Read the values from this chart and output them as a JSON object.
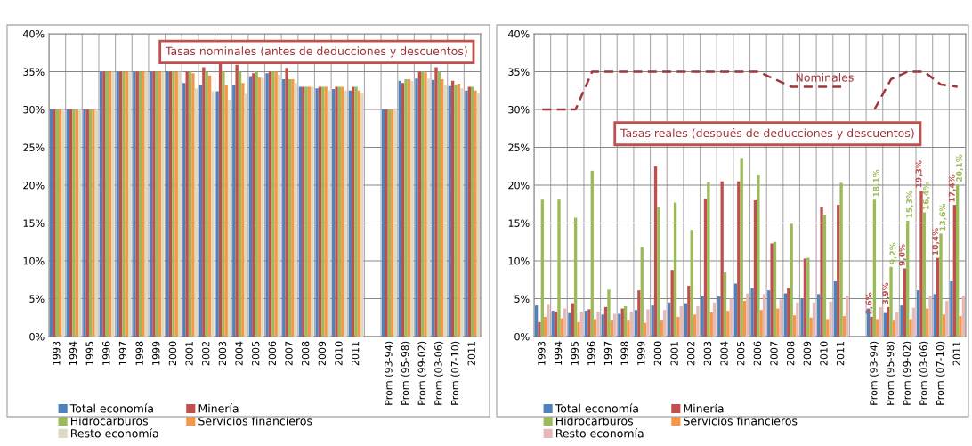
{
  "chart_data": [
    {
      "type": "bar",
      "annotations": [
        "Tasas nominales (antes de deducciones y descuentos)"
      ],
      "categories": [
        "1993",
        "1994",
        "1995",
        "1996",
        "1997",
        "1998",
        "1999",
        "2000",
        "2001",
        "2002",
        "2003",
        "2004",
        "2005",
        "2006",
        "2007",
        "2008",
        "2009",
        "2010",
        "2011",
        null,
        "Prom (93-94)",
        "Prom (95-98)",
        "Prom (99-02)",
        "Prom (03-06)",
        "Prom (07-10)",
        "2011"
      ],
      "series": [
        {
          "name": "Total economía",
          "color": "#4f81bd",
          "values": [
            30,
            30,
            30,
            35,
            35,
            35,
            35,
            35,
            33.5,
            33.2,
            32.4,
            33.2,
            34.4,
            34.8,
            34,
            33,
            32.8,
            32.7,
            32.5,
            null,
            30,
            33.8,
            34.1,
            33.9,
            33.1,
            32.5
          ]
        },
        {
          "name": "Minería",
          "color": "#c0504d",
          "values": [
            30,
            30,
            30,
            35,
            35,
            35,
            35,
            35,
            35,
            35.6,
            36.1,
            35.9,
            34.8,
            35,
            35.5,
            33,
            33,
            33,
            33,
            null,
            30,
            33.5,
            35,
            35.6,
            33.8,
            33
          ]
        },
        {
          "name": "Hidrocarburos",
          "color": "#9bbb59",
          "values": [
            30,
            30,
            30,
            35,
            35,
            35,
            35,
            35,
            35,
            35,
            35,
            35,
            35,
            35,
            34,
            33,
            33,
            33,
            33,
            null,
            30,
            34,
            35,
            35,
            33.3,
            33
          ]
        },
        {
          "name": "Servicios financieros",
          "color": "#f79646",
          "values": [
            30,
            30,
            30,
            35,
            35,
            35,
            35,
            35,
            34.8,
            34.5,
            33.2,
            33.5,
            34.2,
            35,
            34,
            33,
            33,
            33,
            32.5,
            null,
            30,
            34,
            34.9,
            34,
            33.4,
            32.5
          ]
        },
        {
          "name": "Resto economía",
          "color": "#ddd9c3",
          "values": [
            30,
            30,
            30,
            35,
            35,
            35,
            35,
            35,
            32.8,
            32.4,
            31.3,
            32.1,
            34.2,
            34.6,
            33.5,
            33,
            32.5,
            32.5,
            32.2,
            null,
            30,
            33.8,
            34.1,
            33.2,
            32.8,
            32.2
          ]
        }
      ],
      "ylim": [
        0,
        40
      ],
      "yticks": [
        {
          "value": 0,
          "label": "0%"
        },
        {
          "value": 5,
          "label": "5%"
        },
        {
          "value": 10,
          "label": "10%"
        },
        {
          "value": 15,
          "label": "15%"
        },
        {
          "value": 20,
          "label": "20%"
        },
        {
          "value": 25,
          "label": "25%"
        },
        {
          "value": 30,
          "label": "30%"
        },
        {
          "value": 35,
          "label": "35%"
        },
        {
          "value": 40,
          "label": "40%"
        }
      ],
      "grid": true,
      "legend": "bottom"
    },
    {
      "type": "bar",
      "annotations": [
        "Tasas reales (después de deducciones y descuentos)"
      ],
      "categories": [
        "1993",
        "1994",
        "1995",
        "1996",
        "1997",
        "1998",
        "1999",
        "2000",
        "2001",
        "2002",
        "2003",
        "2004",
        "2005",
        "2006",
        "2007",
        "2008",
        "2009",
        "2010",
        "2011",
        null,
        "Prom (93-94)",
        "Prom (95-98)",
        "Prom (99-02)",
        "Prom (03-06)",
        "Prom (07-10)",
        "2011"
      ],
      "series": [
        {
          "name": "Total economía",
          "color": "#4f81bd",
          "values": [
            4.1,
            3.4,
            3.1,
            3.4,
            2.9,
            3.0,
            3.5,
            4.1,
            4.5,
            4.4,
            5.3,
            5.3,
            7.0,
            6.4,
            6.1,
            5.7,
            5.0,
            5.6,
            7.3,
            null,
            3.7,
            3.1,
            4.1,
            6.1,
            5.6,
            7.3
          ]
        },
        {
          "name": "Minería",
          "color": "#c0504d",
          "values": [
            1.9,
            3.3,
            4.4,
            3.6,
            3.9,
            3.7,
            6.1,
            22.5,
            8.8,
            6.7,
            18.2,
            20.5,
            20.5,
            18.0,
            12.3,
            6.4,
            10.3,
            17.1,
            17.4,
            null,
            2.6,
            3.9,
            9.0,
            19.3,
            10.4,
            17.4
          ],
          "value_labels": [
            null,
            null,
            null,
            null,
            null,
            null,
            null,
            null,
            null,
            null,
            null,
            null,
            null,
            null,
            null,
            null,
            null,
            null,
            null,
            null,
            "2,6%",
            "3,9%",
            "9,0%",
            "19,3%",
            "10,4%",
            "17,4%"
          ]
        },
        {
          "name": "Hidrocarburos",
          "color": "#9bbb59",
          "values": [
            18.1,
            18.1,
            15.7,
            21.9,
            6.2,
            4.0,
            11.8,
            17.1,
            17.7,
            14.1,
            20.4,
            8.5,
            23.5,
            21.3,
            12.5,
            14.9,
            10.4,
            16.1,
            20.3,
            null,
            18.1,
            9.2,
            15.3,
            16.4,
            13.6,
            20.1
          ],
          "value_labels": [
            null,
            null,
            null,
            null,
            null,
            null,
            null,
            null,
            null,
            null,
            null,
            null,
            null,
            null,
            null,
            null,
            null,
            null,
            null,
            null,
            "18,1%",
            "9,2%",
            "15,3%",
            "16,4%",
            "13,6%",
            "20,1%"
          ]
        },
        {
          "name": "Servicios financieros",
          "color": "#f79646",
          "values": [
            2.6,
            2.4,
            1.9,
            2.3,
            2.1,
            2.1,
            1.8,
            2.1,
            2.6,
            2.9,
            3.2,
            3.4,
            4.7,
            3.5,
            3.7,
            2.8,
            2.5,
            2.3,
            2.7,
            null,
            2.3,
            2.1,
            2.3,
            3.7,
            2.9,
            2.7
          ]
        },
        {
          "name": "Resto economía",
          "color": "#e6b9b8",
          "values": [
            4.2,
            3.7,
            3.3,
            3.3,
            3.0,
            3.3,
            3.6,
            3.5,
            4.0,
            4.0,
            4.5,
            5.0,
            5.7,
            5.6,
            4.9,
            4.5,
            4.5,
            4.6,
            5.4,
            null,
            3.9,
            3.2,
            3.8,
            5.3,
            4.7,
            5.4
          ]
        },
        {
          "name": "Nominales",
          "type": "line",
          "line_style": "dashed",
          "color": "#a0353a",
          "values": [
            30,
            30,
            30,
            35,
            35,
            35,
            35,
            35,
            35,
            35,
            35,
            35,
            35,
            35,
            34,
            33,
            33,
            33,
            33,
            null,
            30,
            34,
            35,
            35,
            33.3,
            33
          ]
        }
      ],
      "ylim": [
        0,
        40
      ],
      "yticks": [
        {
          "value": 0,
          "label": "0%"
        },
        {
          "value": 5,
          "label": "5%"
        },
        {
          "value": 10,
          "label": "10%"
        },
        {
          "value": 15,
          "label": "15%"
        },
        {
          "value": 20,
          "label": "20%"
        },
        {
          "value": 25,
          "label": "25%"
        },
        {
          "value": 30,
          "label": "30%"
        },
        {
          "value": 35,
          "label": "35%"
        },
        {
          "value": 40,
          "label": "40%"
        }
      ],
      "grid": true,
      "legend": "bottom"
    }
  ]
}
